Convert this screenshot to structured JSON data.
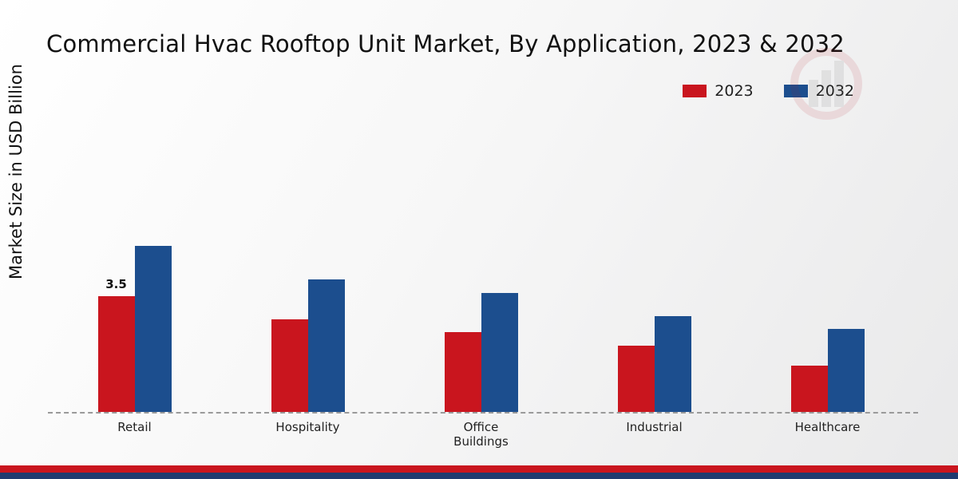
{
  "chart_data": {
    "type": "bar",
    "title": "Commercial Hvac Rooftop Unit Market, By Application, 2023 & 2032",
    "ylabel": "Market Size in USD Billion",
    "xlabel": "",
    "categories": [
      "Retail",
      "Hospitality",
      "Office Buildings",
      "Industrial",
      "Healthcare"
    ],
    "series": [
      {
        "name": "2023",
        "color": "#c9151e",
        "values": [
          3.5,
          2.8,
          2.4,
          2.0,
          1.4
        ]
      },
      {
        "name": "2032",
        "color": "#1c4e8e",
        "values": [
          5.0,
          4.0,
          3.6,
          2.9,
          2.5
        ]
      }
    ],
    "ylim": [
      0,
      6
    ],
    "grid": false,
    "legend_position": "top-right",
    "bar_value_labels": [
      {
        "series": "2023",
        "category": "Retail",
        "text": "3.5"
      }
    ],
    "baseline_style": "dashed"
  },
  "footer": {
    "band_top_color": "#c9151e",
    "band_bottom_color": "#1f3b70"
  }
}
